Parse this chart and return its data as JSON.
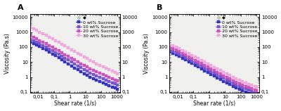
{
  "panel_A": {
    "label": "A",
    "series": [
      {
        "label": "0 wt% Sucrose",
        "color": "#3333BB",
        "marker": "s",
        "x": [
          0.003,
          0.005,
          0.008,
          0.012,
          0.02,
          0.032,
          0.05,
          0.08,
          0.13,
          0.2,
          0.32,
          0.5,
          0.8,
          1.3,
          2.0,
          3.2,
          5.0,
          8.0,
          13.0,
          20.0,
          32.0,
          50.0,
          80.0,
          130.0,
          200.0,
          320.0,
          500.0,
          800.0,
          1000.0
        ],
        "y": [
          220,
          175,
          135,
          105,
          80,
          62,
          47,
          35,
          26,
          19,
          14,
          10,
          7.5,
          5.5,
          4.0,
          3.0,
          2.2,
          1.7,
          1.3,
          1.0,
          0.78,
          0.62,
          0.5,
          0.4,
          0.33,
          0.27,
          0.22,
          0.18,
          0.16
        ]
      },
      {
        "label": "10 wt% Sucrose",
        "color": "#7755CC",
        "marker": "s",
        "x": [
          0.003,
          0.005,
          0.008,
          0.012,
          0.02,
          0.032,
          0.05,
          0.08,
          0.13,
          0.2,
          0.32,
          0.5,
          0.8,
          1.3,
          2.0,
          3.2,
          5.0,
          8.0,
          13.0,
          20.0,
          32.0,
          50.0,
          80.0,
          130.0,
          200.0,
          320.0,
          500.0,
          800.0,
          1000.0
        ],
        "y": [
          340,
          270,
          210,
          165,
          126,
          98,
          75,
          57,
          43,
          32,
          24,
          18,
          13.5,
          10,
          7.5,
          5.6,
          4.2,
          3.2,
          2.5,
          1.9,
          1.5,
          1.2,
          0.97,
          0.78,
          0.63,
          0.52,
          0.42,
          0.35,
          0.3
        ]
      },
      {
        "label": "20 wt% Sucrose",
        "color": "#CC55BB",
        "marker": "s",
        "x": [
          0.003,
          0.005,
          0.008,
          0.012,
          0.02,
          0.032,
          0.05,
          0.08,
          0.13,
          0.2,
          0.32,
          0.5,
          0.8,
          1.3,
          2.0,
          3.2,
          5.0,
          8.0,
          13.0,
          20.0,
          32.0,
          50.0,
          80.0,
          130.0,
          200.0,
          320.0,
          500.0,
          800.0,
          1000.0
        ],
        "y": [
          560,
          445,
          345,
          270,
          207,
          161,
          124,
          95,
          72,
          55,
          42,
          31,
          24,
          18,
          13.5,
          10.2,
          7.8,
          5.9,
          4.6,
          3.6,
          2.8,
          2.2,
          1.8,
          1.45,
          1.17,
          0.96,
          0.78,
          0.64,
          0.55
        ]
      },
      {
        "label": "30 wt% Sucrose",
        "color": "#EEAADD",
        "marker": "s",
        "x": [
          0.003,
          0.005,
          0.008,
          0.012,
          0.02,
          0.032,
          0.05,
          0.08,
          0.13,
          0.2,
          0.32,
          0.5,
          0.8,
          1.3,
          2.0,
          3.2,
          5.0,
          8.0,
          13.0,
          20.0,
          32.0,
          50.0,
          80.0,
          130.0,
          200.0,
          320.0,
          500.0,
          800.0,
          1000.0
        ],
        "y": [
          2000,
          1600,
          1250,
          975,
          750,
          585,
          452,
          348,
          265,
          203,
          155,
          118,
          89,
          67,
          51,
          38,
          29,
          22,
          17,
          13,
          10,
          7.8,
          6.1,
          4.8,
          3.8,
          3.0,
          2.4,
          1.95,
          1.65
        ]
      }
    ],
    "xlabel": "Shear rate (1/s)",
    "ylabel": "Viscosity (Pa.s)",
    "xlim": [
      0.003,
      1500
    ],
    "ylim": [
      0.09,
      15000
    ],
    "yticks": [
      0.1,
      1,
      10,
      100,
      1000,
      10000
    ],
    "yticklabels": [
      "0,1",
      "1",
      "10",
      "100",
      "1000",
      "10000"
    ],
    "xticks": [
      0.01,
      0.1,
      1,
      10,
      100,
      1000
    ],
    "xticklabels": [
      "0,01",
      "0,1",
      "1",
      "10",
      "100",
      "1000"
    ]
  },
  "panel_B": {
    "label": "B",
    "series": [
      {
        "label": "0 wt% Sucrose",
        "color": "#3333BB",
        "marker": "s",
        "x": [
          0.003,
          0.005,
          0.008,
          0.012,
          0.02,
          0.032,
          0.05,
          0.08,
          0.13,
          0.2,
          0.32,
          0.5,
          0.8,
          1.3,
          2.0,
          3.2,
          5.0,
          8.0,
          13.0,
          20.0,
          32.0,
          50.0,
          80.0,
          130.0,
          200.0,
          320.0,
          500.0,
          800.0,
          1000.0
        ],
        "y": [
          48,
          38,
          30,
          23,
          18,
          14,
          10.5,
          8.0,
          6.1,
          4.6,
          3.5,
          2.65,
          2.0,
          1.53,
          1.16,
          0.88,
          0.68,
          0.52,
          0.4,
          0.31,
          0.24,
          0.19,
          0.155,
          0.125,
          0.102,
          0.084,
          0.07,
          0.058,
          0.052
        ]
      },
      {
        "label": "10 wt% Sucrose",
        "color": "#7755CC",
        "marker": "s",
        "x": [
          0.003,
          0.005,
          0.008,
          0.012,
          0.02,
          0.032,
          0.05,
          0.08,
          0.13,
          0.2,
          0.32,
          0.5,
          0.8,
          1.3,
          2.0,
          3.2,
          5.0,
          8.0,
          13.0,
          20.0,
          32.0,
          50.0,
          80.0,
          130.0,
          200.0,
          320.0,
          500.0,
          800.0,
          1000.0
        ],
        "y": [
          68,
          54,
          42,
          33,
          26,
          20,
          15.4,
          11.8,
          9.0,
          6.9,
          5.2,
          4.0,
          3.05,
          2.34,
          1.79,
          1.37,
          1.06,
          0.82,
          0.63,
          0.49,
          0.38,
          0.3,
          0.24,
          0.196,
          0.162,
          0.133,
          0.11,
          0.092,
          0.082
        ]
      },
      {
        "label": "20 wt% Sucrose",
        "color": "#CC55BB",
        "marker": "s",
        "x": [
          0.003,
          0.005,
          0.008,
          0.012,
          0.02,
          0.032,
          0.05,
          0.08,
          0.13,
          0.2,
          0.32,
          0.5,
          0.8,
          1.3,
          2.0,
          3.2,
          5.0,
          8.0,
          13.0,
          20.0,
          32.0,
          50.0,
          80.0,
          130.0,
          200.0,
          320.0,
          500.0,
          800.0,
          1000.0
        ],
        "y": [
          100,
          80,
          62,
          49,
          38,
          29.5,
          22.8,
          17.5,
          13.4,
          10.3,
          7.9,
          6.0,
          4.6,
          3.55,
          2.72,
          2.09,
          1.61,
          1.24,
          0.96,
          0.75,
          0.58,
          0.46,
          0.37,
          0.3,
          0.245,
          0.202,
          0.167,
          0.14,
          0.124
        ]
      },
      {
        "label": "30 wt% Sucrose",
        "color": "#EEAADD",
        "marker": "s",
        "x": [
          0.003,
          0.005,
          0.008,
          0.012,
          0.02,
          0.032,
          0.05,
          0.08,
          0.13,
          0.2,
          0.32,
          0.5,
          0.8,
          1.3,
          2.0,
          3.2,
          5.0,
          8.0,
          13.0,
          20.0,
          32.0,
          50.0,
          80.0,
          130.0,
          200.0,
          320.0,
          500.0,
          800.0,
          1000.0
        ],
        "y": [
          155,
          123,
          97,
          76,
          60,
          47,
          36.5,
          28.2,
          21.7,
          16.7,
          12.9,
          9.9,
          7.6,
          5.9,
          4.5,
          3.5,
          2.7,
          2.1,
          1.62,
          1.26,
          0.99,
          0.78,
          0.62,
          0.5,
          0.41,
          0.34,
          0.28,
          0.23,
          0.205
        ]
      }
    ],
    "xlabel": "Shear rate (1/s)",
    "ylabel": "Viscosity (Pa.s)",
    "xlim": [
      0.003,
      1500
    ],
    "ylim": [
      0.09,
      15000
    ],
    "yticks": [
      0.1,
      1,
      10,
      100,
      1000,
      10000
    ],
    "yticklabels": [
      "0,1",
      "1",
      "10",
      "100",
      "1000",
      "10000"
    ],
    "xticks": [
      0.01,
      0.1,
      1,
      10,
      100,
      1000
    ],
    "xticklabels": [
      "0,01",
      "0,1",
      "1",
      "10",
      "100",
      "1000"
    ]
  },
  "bg_color": "#ffffff",
  "plot_bg_color": "#f0f0ee",
  "markersize": 2.5,
  "linewidth": 0.7,
  "fontsize_label": 5.5,
  "fontsize_tick": 5.0,
  "fontsize_legend": 4.5,
  "fontsize_panel_label": 8
}
